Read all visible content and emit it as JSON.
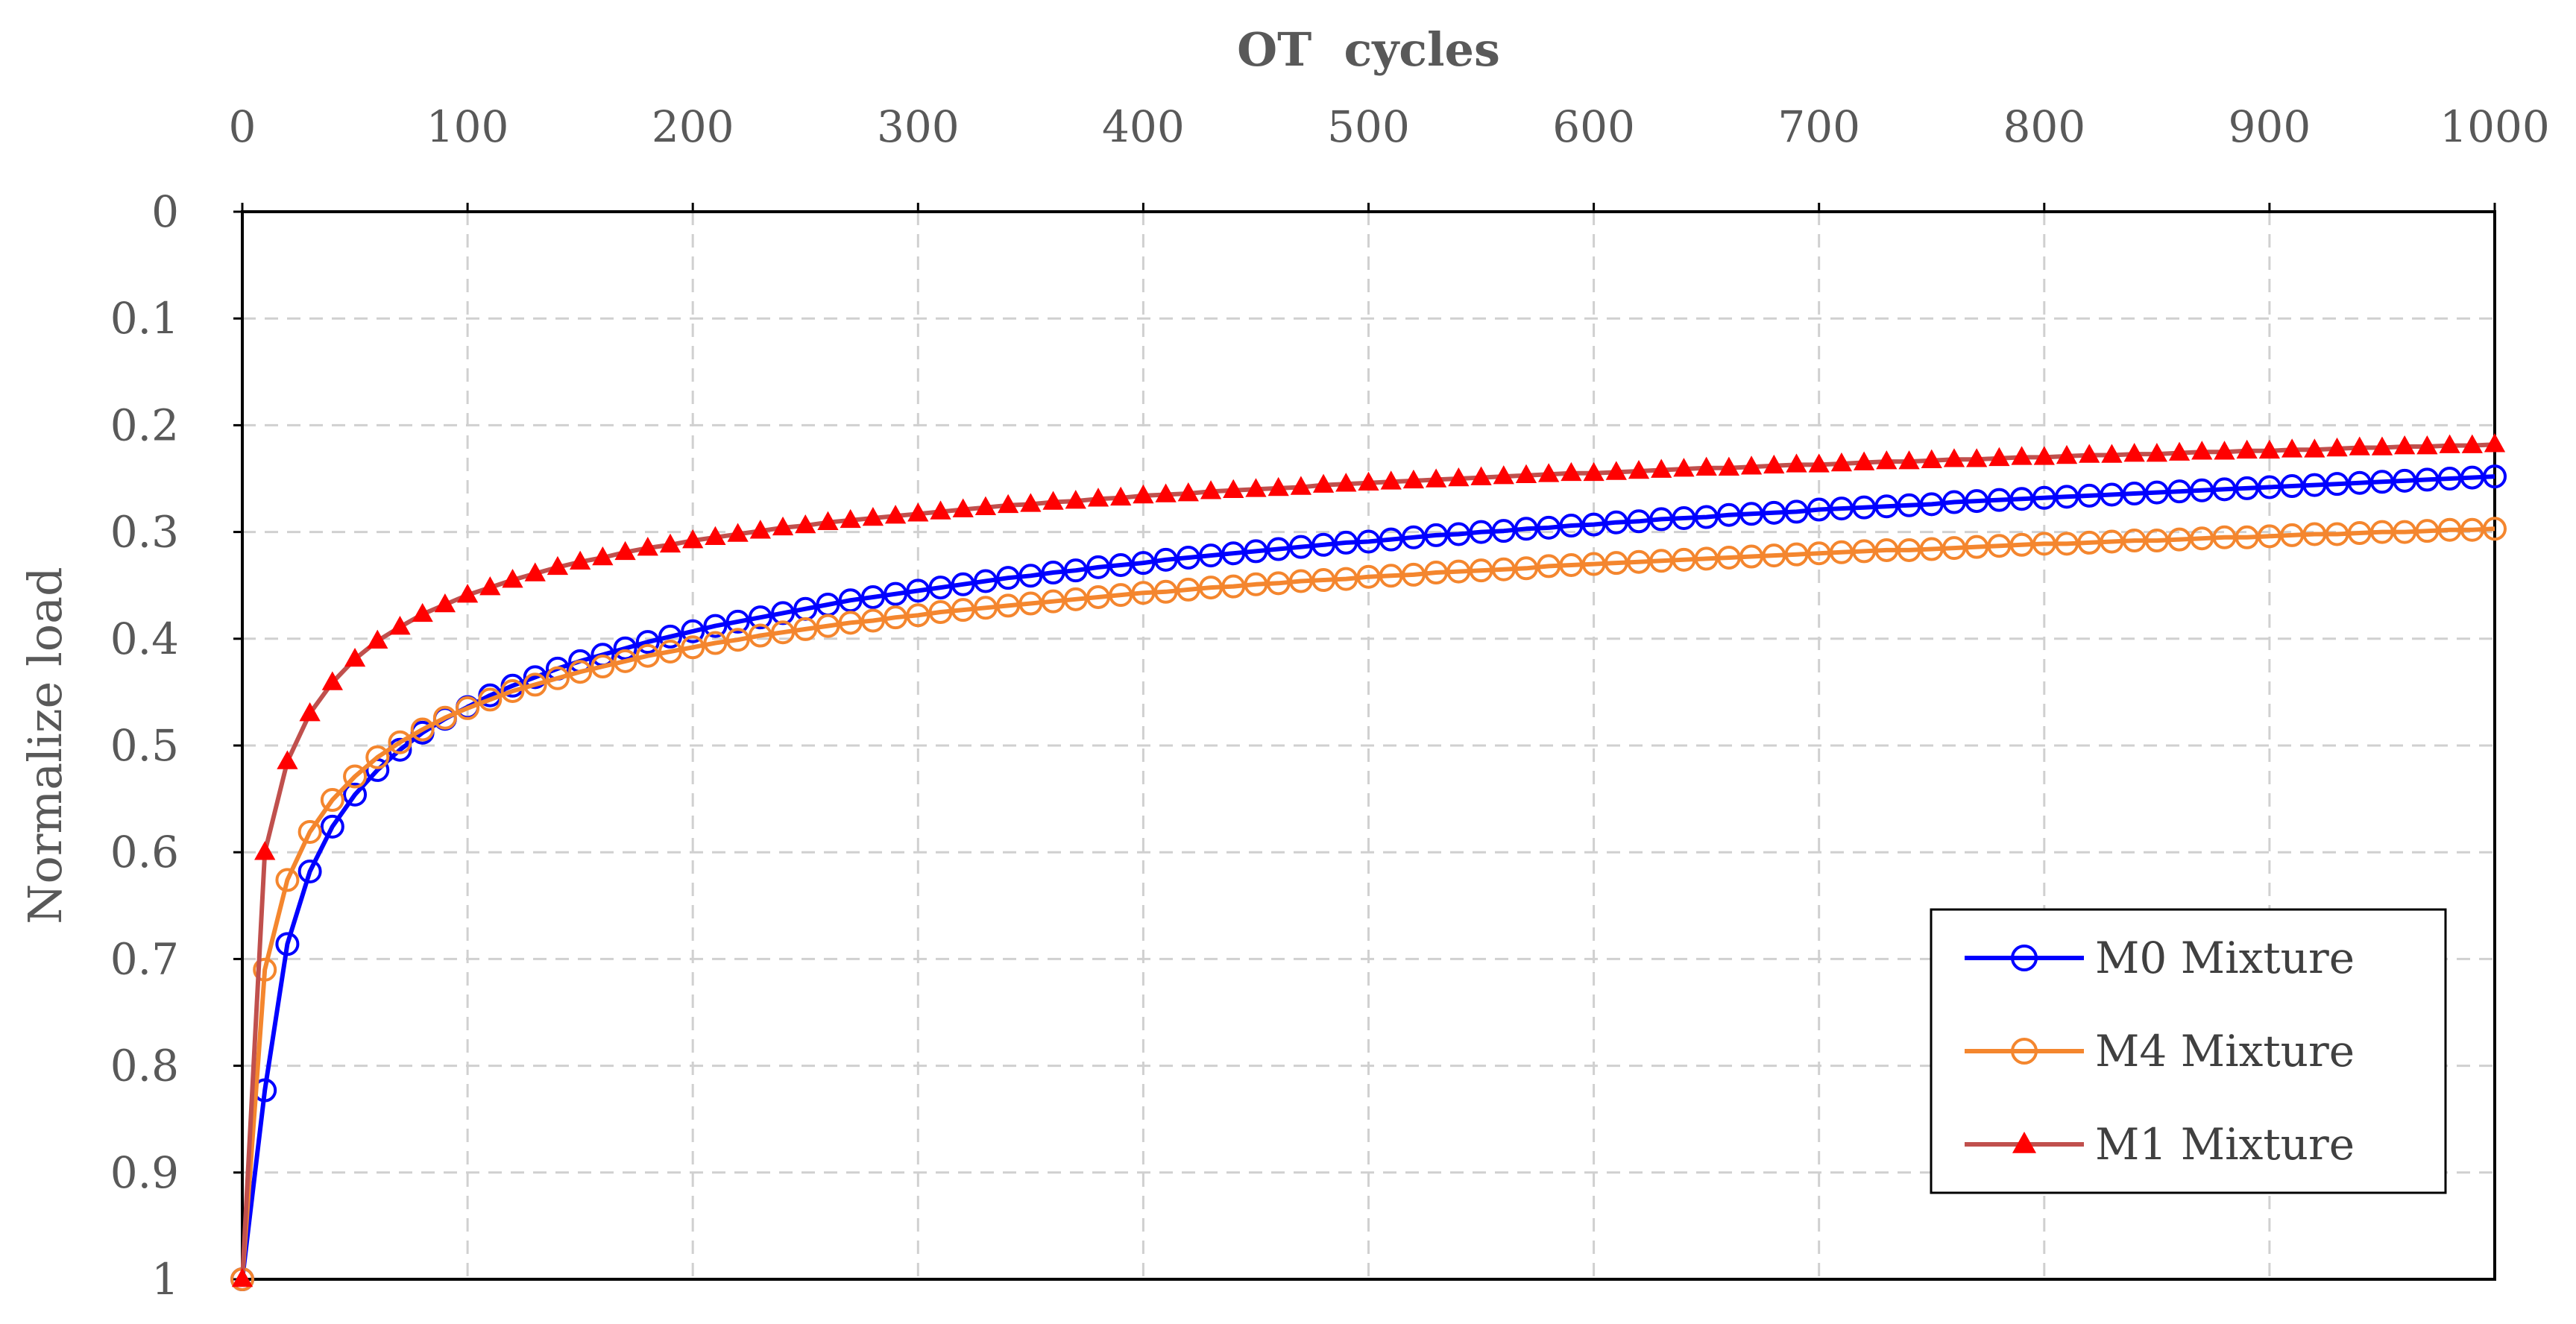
{
  "chart_data": {
    "type": "line",
    "title": "",
    "xlabel": "OT  cycles",
    "ylabel": "Normalize load",
    "xlim": [
      0,
      1000
    ],
    "ylim": [
      0,
      1
    ],
    "y_reversed": true,
    "x_axis_position": "top",
    "grid": true,
    "legend_position": "bottom-right",
    "x_ticks": [
      0,
      100,
      200,
      300,
      400,
      500,
      600,
      700,
      800,
      900,
      1000
    ],
    "x_tick_labels": [
      "0",
      "100",
      "200",
      "300",
      "400",
      "500",
      "600",
      "700",
      "800",
      "900",
      "1000"
    ],
    "y_ticks": [
      0,
      0.1,
      0.2,
      0.3,
      0.4,
      0.5,
      0.6,
      0.7,
      0.8,
      0.9,
      1
    ],
    "y_tick_labels": [
      "0",
      "0.1",
      "0.2",
      "0.3",
      "0.4",
      "0.5",
      "0.6",
      "0.7",
      "0.8",
      "0.9",
      "1"
    ],
    "series": [
      {
        "name": "M0 Mixture",
        "color": "#0000FF",
        "marker": "circle-open",
        "x": [
          0,
          10,
          20,
          30,
          40,
          50,
          60,
          70,
          80,
          90,
          100,
          110,
          120,
          130,
          140,
          150,
          160,
          170,
          180,
          190,
          200,
          210,
          220,
          230,
          240,
          250,
          260,
          270,
          280,
          290,
          300,
          310,
          320,
          330,
          340,
          350,
          360,
          370,
          380,
          390,
          400,
          410,
          420,
          430,
          440,
          450,
          460,
          470,
          480,
          490,
          500,
          510,
          520,
          530,
          540,
          550,
          560,
          570,
          580,
          590,
          600,
          610,
          620,
          630,
          640,
          650,
          660,
          670,
          680,
          690,
          700,
          710,
          720,
          730,
          740,
          750,
          760,
          770,
          780,
          790,
          800,
          810,
          820,
          830,
          840,
          850,
          860,
          870,
          880,
          890,
          900,
          910,
          920,
          930,
          940,
          950,
          960,
          970,
          980,
          990,
          1000
        ],
        "values": [
          1.0,
          0.823,
          0.686,
          0.618,
          0.576,
          0.546,
          0.523,
          0.504,
          0.488,
          0.475,
          0.464,
          0.453,
          0.444,
          0.436,
          0.428,
          0.421,
          0.415,
          0.409,
          0.403,
          0.398,
          0.393,
          0.388,
          0.384,
          0.38,
          0.376,
          0.372,
          0.368,
          0.364,
          0.361,
          0.358,
          0.355,
          0.352,
          0.349,
          0.346,
          0.343,
          0.341,
          0.338,
          0.336,
          0.333,
          0.331,
          0.329,
          0.326,
          0.324,
          0.322,
          0.32,
          0.318,
          0.316,
          0.314,
          0.312,
          0.31,
          0.309,
          0.307,
          0.305,
          0.303,
          0.302,
          0.3,
          0.299,
          0.297,
          0.296,
          0.294,
          0.293,
          0.291,
          0.29,
          0.288,
          0.287,
          0.286,
          0.284,
          0.283,
          0.282,
          0.281,
          0.279,
          0.278,
          0.277,
          0.276,
          0.275,
          0.274,
          0.272,
          0.271,
          0.27,
          0.269,
          0.268,
          0.267,
          0.266,
          0.265,
          0.264,
          0.263,
          0.262,
          0.261,
          0.26,
          0.259,
          0.258,
          0.257,
          0.256,
          0.255,
          0.254,
          0.253,
          0.252,
          0.251,
          0.25,
          0.249,
          0.248
        ]
      },
      {
        "name": "M4 Mixture",
        "color": "#F4862E",
        "marker": "circle-open",
        "x": [
          0,
          10,
          20,
          30,
          40,
          50,
          60,
          70,
          80,
          90,
          100,
          110,
          120,
          130,
          140,
          150,
          160,
          170,
          180,
          190,
          200,
          210,
          220,
          230,
          240,
          250,
          260,
          270,
          280,
          290,
          300,
          310,
          320,
          330,
          340,
          350,
          360,
          370,
          380,
          390,
          400,
          410,
          420,
          430,
          440,
          450,
          460,
          470,
          480,
          490,
          500,
          510,
          520,
          530,
          540,
          550,
          560,
          570,
          580,
          590,
          600,
          610,
          620,
          630,
          640,
          650,
          660,
          670,
          680,
          690,
          700,
          710,
          720,
          730,
          740,
          750,
          760,
          770,
          780,
          790,
          800,
          810,
          820,
          830,
          840,
          850,
          860,
          870,
          880,
          890,
          900,
          910,
          920,
          930,
          940,
          950,
          960,
          970,
          980,
          990,
          1000
        ],
        "values": [
          1.0,
          0.71,
          0.626,
          0.581,
          0.551,
          0.529,
          0.511,
          0.497,
          0.485,
          0.474,
          0.465,
          0.457,
          0.449,
          0.443,
          0.437,
          0.431,
          0.426,
          0.421,
          0.416,
          0.412,
          0.408,
          0.404,
          0.401,
          0.397,
          0.394,
          0.391,
          0.388,
          0.385,
          0.383,
          0.38,
          0.378,
          0.375,
          0.373,
          0.371,
          0.369,
          0.367,
          0.365,
          0.363,
          0.361,
          0.359,
          0.357,
          0.356,
          0.354,
          0.352,
          0.351,
          0.349,
          0.348,
          0.346,
          0.345,
          0.344,
          0.342,
          0.341,
          0.34,
          0.338,
          0.337,
          0.336,
          0.335,
          0.334,
          0.332,
          0.331,
          0.33,
          0.329,
          0.328,
          0.327,
          0.326,
          0.325,
          0.324,
          0.323,
          0.322,
          0.321,
          0.32,
          0.319,
          0.318,
          0.317,
          0.317,
          0.316,
          0.315,
          0.314,
          0.313,
          0.312,
          0.311,
          0.311,
          0.31,
          0.309,
          0.308,
          0.308,
          0.307,
          0.306,
          0.305,
          0.305,
          0.304,
          0.303,
          0.302,
          0.302,
          0.301,
          0.3,
          0.3,
          0.299,
          0.298,
          0.298,
          0.297
        ]
      },
      {
        "name": "M1 Mixture",
        "color": "#C0504D",
        "marker_color": "#FF0000",
        "marker": "triangle-filled",
        "x": [
          0,
          10,
          20,
          30,
          40,
          50,
          60,
          70,
          80,
          90,
          100,
          110,
          120,
          130,
          140,
          150,
          160,
          170,
          180,
          190,
          200,
          210,
          220,
          230,
          240,
          250,
          260,
          270,
          280,
          290,
          300,
          310,
          320,
          330,
          340,
          350,
          360,
          370,
          380,
          390,
          400,
          410,
          420,
          430,
          440,
          450,
          460,
          470,
          480,
          490,
          500,
          510,
          520,
          530,
          540,
          550,
          560,
          570,
          580,
          590,
          600,
          610,
          620,
          630,
          640,
          650,
          660,
          670,
          680,
          690,
          700,
          710,
          720,
          730,
          740,
          750,
          760,
          770,
          780,
          790,
          800,
          810,
          820,
          830,
          840,
          850,
          860,
          870,
          880,
          890,
          900,
          910,
          920,
          930,
          940,
          950,
          960,
          970,
          980,
          990,
          1000
        ],
        "values": [
          1.0,
          0.6,
          0.515,
          0.47,
          0.441,
          0.419,
          0.402,
          0.389,
          0.377,
          0.368,
          0.359,
          0.352,
          0.345,
          0.339,
          0.333,
          0.328,
          0.324,
          0.319,
          0.315,
          0.312,
          0.308,
          0.305,
          0.302,
          0.299,
          0.296,
          0.294,
          0.291,
          0.289,
          0.287,
          0.285,
          0.283,
          0.281,
          0.279,
          0.277,
          0.275,
          0.274,
          0.272,
          0.271,
          0.269,
          0.268,
          0.266,
          0.265,
          0.264,
          0.262,
          0.261,
          0.26,
          0.259,
          0.258,
          0.256,
          0.255,
          0.254,
          0.253,
          0.252,
          0.251,
          0.25,
          0.249,
          0.248,
          0.247,
          0.246,
          0.245,
          0.245,
          0.244,
          0.243,
          0.242,
          0.241,
          0.24,
          0.24,
          0.239,
          0.238,
          0.237,
          0.237,
          0.236,
          0.235,
          0.234,
          0.234,
          0.233,
          0.232,
          0.232,
          0.231,
          0.23,
          0.23,
          0.229,
          0.228,
          0.228,
          0.227,
          0.227,
          0.226,
          0.225,
          0.225,
          0.224,
          0.224,
          0.223,
          0.223,
          0.222,
          0.221,
          0.221,
          0.22,
          0.22,
          0.219,
          0.219,
          0.218
        ]
      }
    ]
  }
}
